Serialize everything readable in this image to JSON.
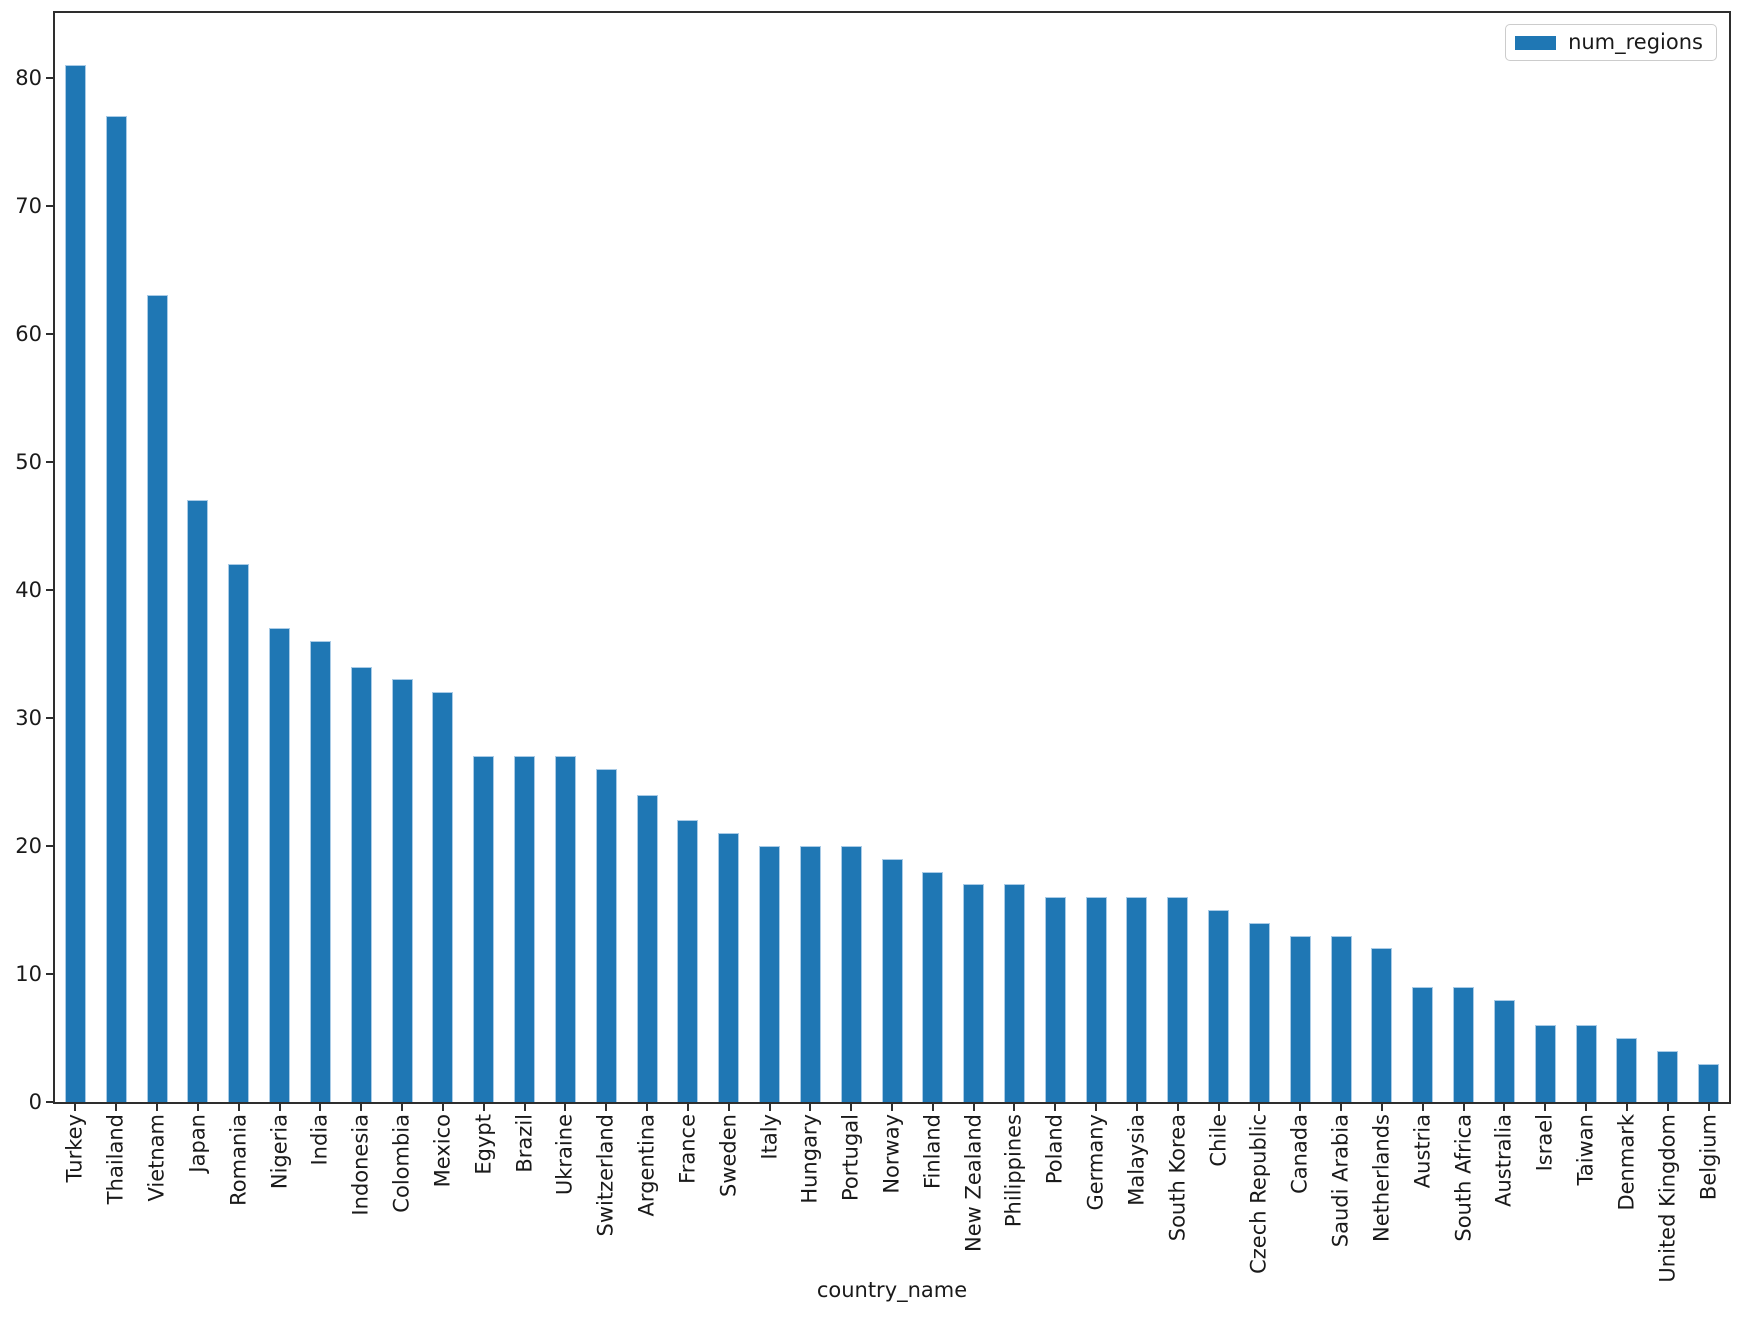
{
  "chart_data": {
    "type": "bar",
    "title": "",
    "xlabel": "country_name",
    "ylabel": "",
    "grid": false,
    "legend": {
      "label": "num_regions",
      "position": "upper right"
    },
    "colors": {
      "bar": "#1f77b4"
    },
    "ylim": [
      0,
      85.05
    ],
    "yticks": [
      0,
      10,
      20,
      30,
      40,
      50,
      60,
      70,
      80
    ],
    "categories": [
      "Turkey",
      "Thailand",
      "Vietnam",
      "Japan",
      "Romania",
      "Nigeria",
      "India",
      "Indonesia",
      "Colombia",
      "Mexico",
      "Egypt",
      "Brazil",
      "Ukraine",
      "Switzerland",
      "Argentina",
      "France",
      "Sweden",
      "Italy",
      "Hungary",
      "Portugal",
      "Norway",
      "Finland",
      "New Zealand",
      "Philippines",
      "Poland",
      "Germany",
      "Malaysia",
      "South Korea",
      "Chile",
      "Czech Republic",
      "Canada",
      "Saudi Arabia",
      "Netherlands",
      "Austria",
      "South Africa",
      "Australia",
      "Israel",
      "Taiwan",
      "Denmark",
      "United Kingdom",
      "Belgium"
    ],
    "series": [
      {
        "name": "num_regions",
        "values": [
          81,
          77,
          63,
          47,
          42,
          37,
          36,
          34,
          33,
          32,
          27,
          27,
          27,
          26,
          24,
          22,
          21,
          20,
          20,
          20,
          19,
          18,
          17,
          17,
          16,
          16,
          16,
          16,
          15,
          14,
          13,
          13,
          12,
          9,
          9,
          8,
          6,
          6,
          5,
          4,
          3
        ]
      }
    ]
  }
}
